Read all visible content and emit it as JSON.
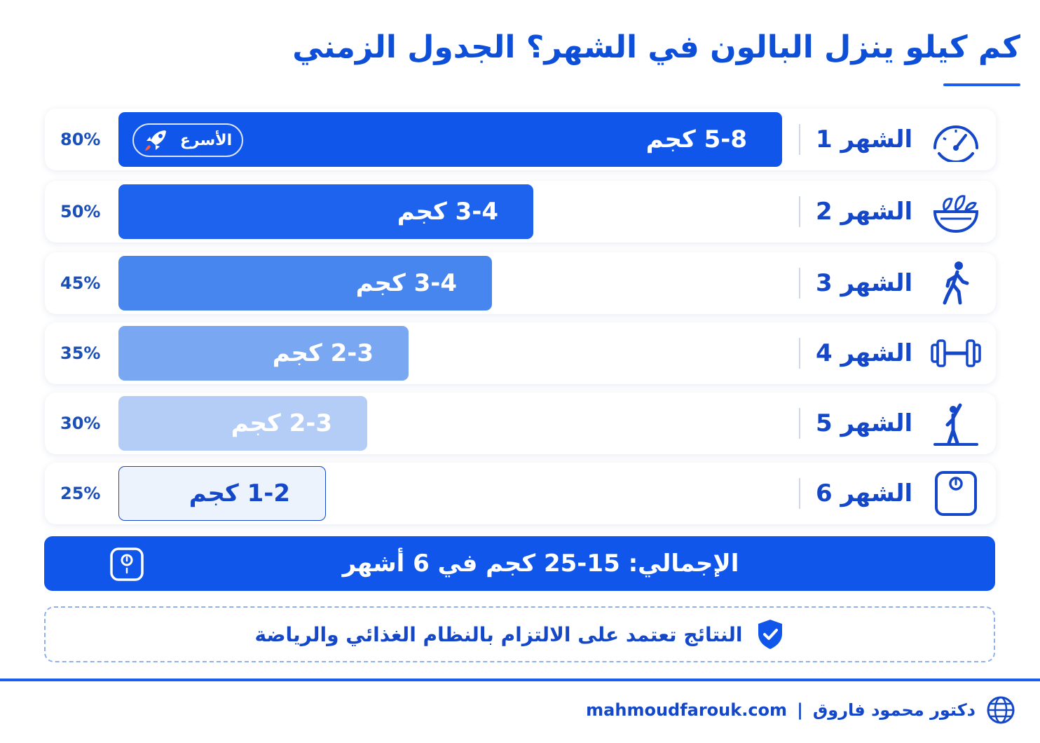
{
  "title": "كم كيلو ينزل البالون في الشهر؟ الجدول الزمني",
  "colors": {
    "primary": "#0d4fd9",
    "bar_shades": [
      "#1156ea",
      "#1d63ee",
      "#4886ef",
      "#7aa7f2",
      "#b4cdf7",
      "#edf3fd"
    ],
    "card_bg": "#ffffff",
    "divider": "#cfd8e6"
  },
  "badge": {
    "label": "الأسرع",
    "icon": "rocket-icon"
  },
  "chart_data": {
    "type": "bar",
    "orientation": "horizontal",
    "categories": [
      "الشهر 1",
      "الشهر 2",
      "الشهر 3",
      "الشهر 4",
      "الشهر 5",
      "الشهر 6"
    ],
    "values": [
      80,
      50,
      45,
      35,
      30,
      25
    ],
    "value_labels": [
      "80%",
      "50%",
      "45%",
      "35%",
      "30%",
      "25%"
    ],
    "bar_labels": [
      "5-8 كجم",
      "3-4 كجم",
      "3-4 كجم",
      "2-3 كجم",
      "2-3 كجم",
      "1-2 كجم"
    ],
    "icons": [
      "speedometer-icon",
      "salad-bowl-icon",
      "walking-person-icon",
      "dumbbell-icon",
      "stretching-person-icon",
      "scale-icon"
    ],
    "xlim": [
      0,
      100
    ]
  },
  "total": {
    "text": "الإجمالي: 15-25 كجم في 6 أشهر",
    "icon": "scale-icon"
  },
  "note": {
    "text": "النتائج تعتمد على الالتزام بالنظام الغذائي والرياضة",
    "icon": "shield-check-icon"
  },
  "footer": {
    "author": "دكتور محمود فاروق",
    "separator": "|",
    "website": "mahmoudfarouk.com",
    "icon": "globe-icon"
  }
}
